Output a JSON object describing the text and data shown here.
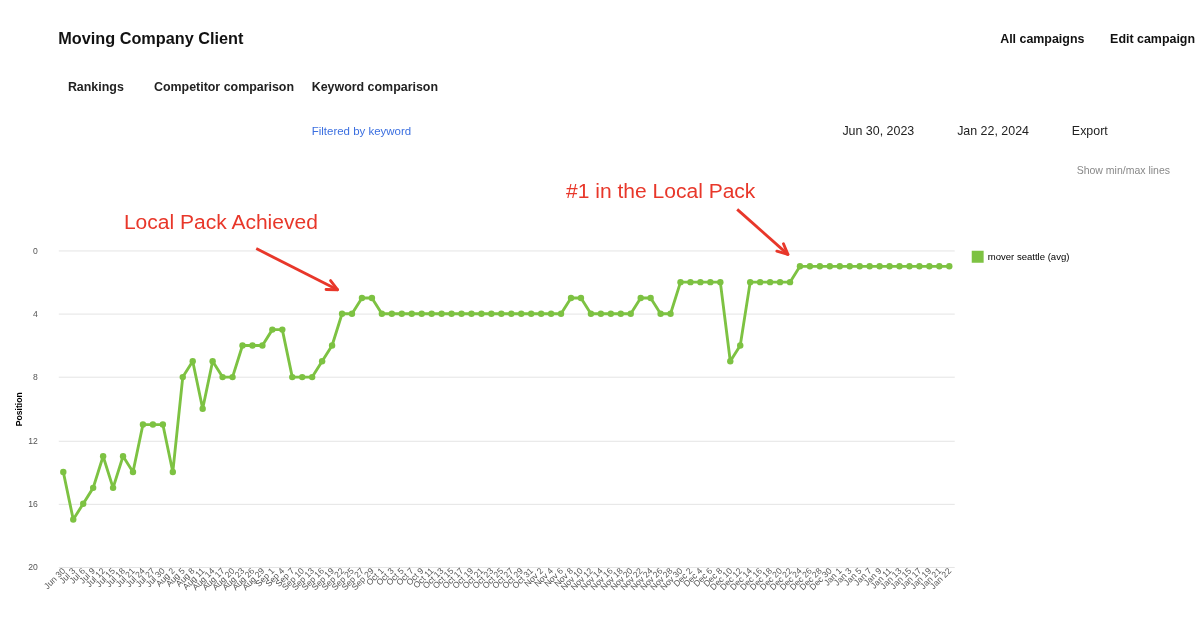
{
  "chart_data": {
    "type": "line",
    "title": "Moving Company Client",
    "ylabel": "Position",
    "categories": [
      "Jun 30",
      "Jul 3",
      "Jul 6",
      "Jul 9",
      "Jul 12",
      "Jul 15",
      "Jul 18",
      "Jul 21",
      "Jul 24",
      "Jul 27",
      "Jul 30",
      "Aug 2",
      "Aug 5",
      "Aug 8",
      "Aug 11",
      "Aug 14",
      "Aug 17",
      "Aug 20",
      "Aug 23",
      "Aug 26",
      "Aug 29",
      "Sep 1",
      "Sep 4",
      "Sep 7",
      "Sep 10",
      "Sep 13",
      "Sep 16",
      "Sep 19",
      "Sep 22",
      "Sep 25",
      "Sep 27",
      "Sep 29",
      "Oct 1",
      "Oct 3",
      "Oct 5",
      "Oct 7",
      "Oct 9",
      "Oct 11",
      "Oct 13",
      "Oct 15",
      "Oct 17",
      "Oct 19",
      "Oct 21",
      "Oct 23",
      "Oct 25",
      "Oct 27",
      "Oct 29",
      "Oct 31",
      "Nov 2",
      "Nov 4",
      "Nov 6",
      "Nov 8",
      "Nov 10",
      "Nov 12",
      "Nov 14",
      "Nov 16",
      "Nov 18",
      "Nov 20",
      "Nov 22",
      "Nov 24",
      "Nov 26",
      "Nov 28",
      "Nov 30",
      "Dec 2",
      "Dec 4",
      "Dec 6",
      "Dec 8",
      "Dec 10",
      "Dec 12",
      "Dec 14",
      "Dec 16",
      "Dec 18",
      "Dec 20",
      "Dec 22",
      "Dec 24",
      "Dec 26",
      "Dec 28",
      "Dec 30",
      "Jan 1",
      "Jan 3",
      "Jan 5",
      "Jan 7",
      "Jan 9",
      "Jan 11",
      "Jan 13",
      "Jan 15",
      "Jan 17",
      "Jan 19",
      "Jan 21",
      "Jan 22"
    ],
    "series": [
      {
        "name": "mover seattle (avg)",
        "color": "#7dc242",
        "values": [
          14,
          17,
          16,
          15,
          13,
          15,
          13,
          14,
          11,
          11,
          11,
          14,
          8,
          7,
          10,
          7,
          8,
          8,
          6,
          6,
          6,
          5,
          5,
          8,
          8,
          8,
          7,
          6,
          4,
          4,
          3,
          3,
          4,
          4,
          4,
          4,
          4,
          4,
          4,
          4,
          4,
          4,
          4,
          4,
          4,
          4,
          4,
          4,
          4,
          4,
          4,
          3,
          3,
          4,
          4,
          4,
          4,
          4,
          3,
          3,
          4,
          4,
          2,
          2,
          2,
          2,
          2,
          7,
          6,
          2,
          2,
          2,
          2,
          2,
          1,
          1,
          1,
          1,
          1,
          1,
          1,
          1,
          1,
          1,
          1,
          1,
          1,
          1,
          1,
          1
        ]
      }
    ],
    "ylim": [
      20,
      0
    ],
    "yticks": [
      0,
      4,
      8,
      12,
      16,
      20
    ],
    "grid": "y",
    "legend": "top right",
    "marker": "circle",
    "line_style": "solid",
    "annotations": [
      "All campaigns",
      "Edit campaign",
      "Rankings",
      "Competitor comparison",
      "Keyword comparison",
      "Filtered by keyword",
      "Jun 30, 2023",
      "Jan 22, 2024",
      "Export",
      "Show min/max lines",
      "Local Pack Achieved",
      "#1 in the Local Pack"
    ]
  }
}
